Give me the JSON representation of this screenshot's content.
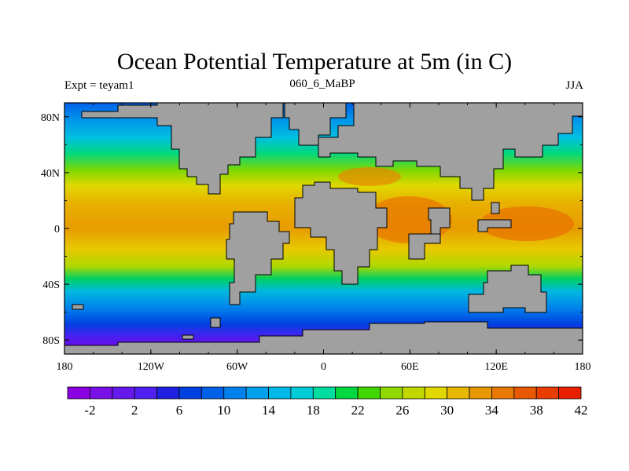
{
  "header": {
    "title": "Ocean Potential Temperature at 5m (in C)",
    "left": "Expt = teyam1",
    "center": "060_6_MaBP",
    "right": "JJA"
  },
  "map": {
    "lon_range": [
      -180,
      180
    ],
    "lat_range": [
      -90,
      90
    ],
    "x_ticks": [
      {
        "lon": -180,
        "label": "180"
      },
      {
        "lon": -120,
        "label": "120W"
      },
      {
        "lon": -60,
        "label": "60W"
      },
      {
        "lon": 0,
        "label": "0"
      },
      {
        "lon": 60,
        "label": "60E"
      },
      {
        "lon": 120,
        "label": "120E"
      },
      {
        "lon": 180,
        "label": "180"
      }
    ],
    "y_ticks": [
      {
        "lat": 80,
        "label": "80N"
      },
      {
        "lat": 40,
        "label": "40N"
      },
      {
        "lat": 0,
        "label": "0"
      },
      {
        "lat": -40,
        "label": "40S"
      },
      {
        "lat": -80,
        "label": "80S"
      }
    ],
    "land_color": "#a0a0a0"
  },
  "colorbar": {
    "labels": [
      "-2",
      "2",
      "6",
      "10",
      "14",
      "18",
      "22",
      "26",
      "30",
      "34",
      "38",
      "42"
    ],
    "colors": [
      "#8a00e0",
      "#7a10e8",
      "#6418ec",
      "#5020f0",
      "#2020e0",
      "#0040e0",
      "#0060e8",
      "#0080ec",
      "#00a0ec",
      "#00b8e8",
      "#00ccd8",
      "#00dca0",
      "#00d840",
      "#40d800",
      "#90d800",
      "#c0d800",
      "#e0d800",
      "#e8b800",
      "#e89800",
      "#e87800",
      "#e85800",
      "#e83c00",
      "#e82000"
    ]
  }
}
